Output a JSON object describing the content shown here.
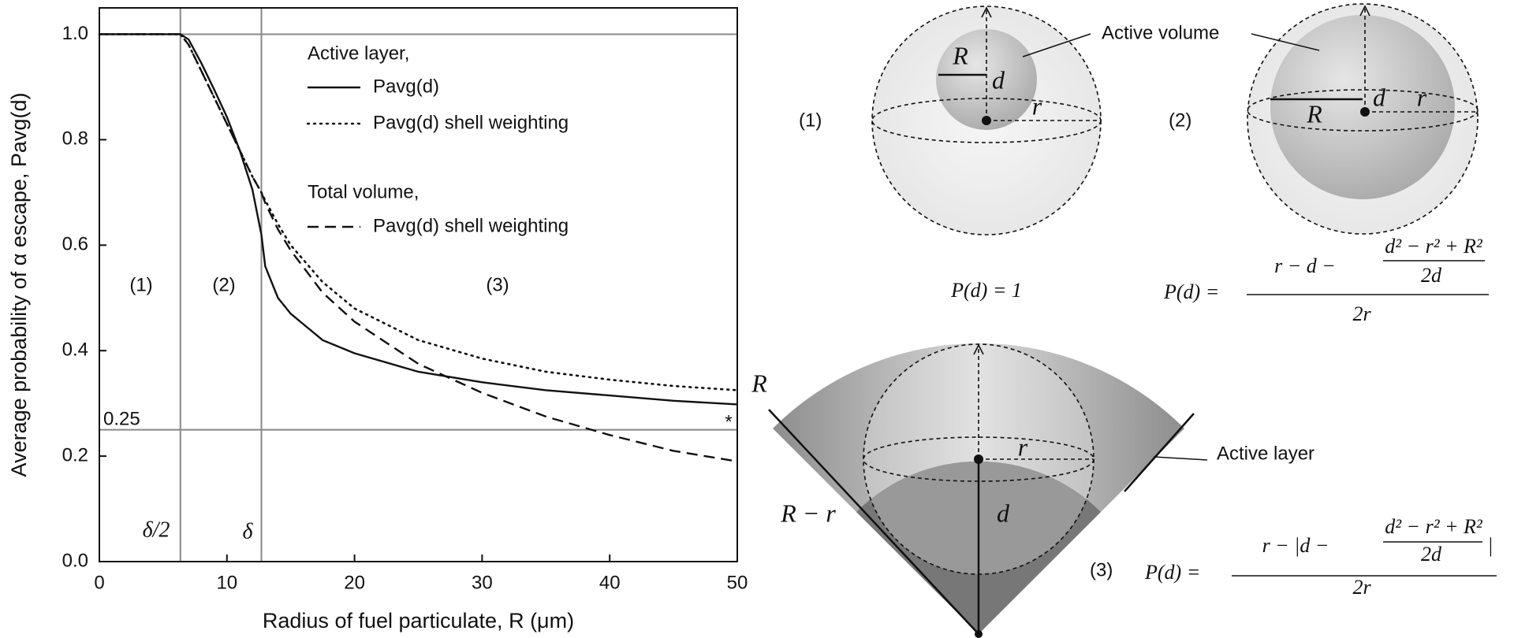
{
  "chart_data": {
    "type": "line",
    "xlabel": "Radius of fuel particulate, R (μm)",
    "ylabel": "Average probability of α escape, Pavg(d)",
    "x": [
      0,
      5,
      6.35,
      7,
      8,
      9,
      10,
      11,
      12,
      12.7,
      13,
      14,
      15,
      17.5,
      20,
      25,
      30,
      35,
      40,
      45,
      50
    ],
    "series": [
      {
        "name": "Pavg(d)",
        "color": "#111111",
        "dash": "solid",
        "values": [
          1,
          1,
          1,
          0.99,
          0.945,
          0.895,
          0.843,
          0.78,
          0.705,
          0.62,
          0.56,
          0.5,
          0.47,
          0.42,
          0.395,
          0.36,
          0.34,
          0.325,
          0.315,
          0.305,
          0.298
        ]
      },
      {
        "name": "Pavg(d) shell weighting",
        "color": "#111111",
        "dash": "dotted",
        "values": [
          1,
          1,
          1,
          0.98,
          0.93,
          0.88,
          0.83,
          0.78,
          0.73,
          0.7,
          0.685,
          0.64,
          0.6,
          0.53,
          0.48,
          0.42,
          0.385,
          0.36,
          0.345,
          0.333,
          0.325
        ]
      },
      {
        "name": "Pavg(d) shell weighting",
        "color": "#111111",
        "dash": "dashed",
        "values": [
          1,
          1,
          1,
          0.98,
          0.93,
          0.88,
          0.83,
          0.78,
          0.73,
          0.7,
          0.68,
          0.63,
          0.59,
          0.51,
          0.455,
          0.375,
          0.32,
          0.275,
          0.24,
          0.21,
          0.19
        ]
      }
    ],
    "legend_headers": [
      "Active layer,",
      "Total volume,"
    ],
    "xlim": [
      0,
      50
    ],
    "xticks": [
      0,
      10,
      20,
      30,
      40,
      50
    ],
    "ylim": [
      0,
      1.05
    ],
    "yticks": [
      {
        "value": 0,
        "label": "0.0"
      },
      {
        "value": 0.2,
        "label": "0.2"
      },
      {
        "value": 0.4,
        "label": "0.4"
      },
      {
        "value": 0.6,
        "label": "0.6"
      },
      {
        "value": 0.8,
        "label": "0.8"
      },
      {
        "value": 1,
        "label": "1.0"
      }
    ],
    "reference_lines": {
      "y": [
        1,
        0.25
      ],
      "x": [
        6.35,
        12.7
      ],
      "color": "#888888"
    },
    "annotations": [
      "(1)",
      "(2)",
      "(3)",
      "0.25",
      "δ/2",
      "δ",
      "*"
    ],
    "grid": false
  },
  "diagram": {
    "callouts": [
      "Active volume",
      "Active layer"
    ],
    "panel_labels": [
      "(1)",
      "(2)",
      "(3)"
    ],
    "variables": [
      "R",
      "d",
      "r",
      "R",
      "d",
      "r",
      "R",
      "r",
      "d",
      "R − r"
    ],
    "equations": [
      {
        "text": "P(d) = 1"
      },
      {
        "lhs": "P(d) =",
        "numerator": "r − d −",
        "inner_numerator": "d² − r² + R²",
        "inner_denominator": "2d",
        "denominator": "2r"
      },
      {
        "lhs": "P(d) =",
        "numerator": "r − |d −",
        "inner_numerator": "d² − r² + R²",
        "inner_denominator": "2d",
        "closing": "|",
        "denominator": "2r"
      }
    ]
  }
}
